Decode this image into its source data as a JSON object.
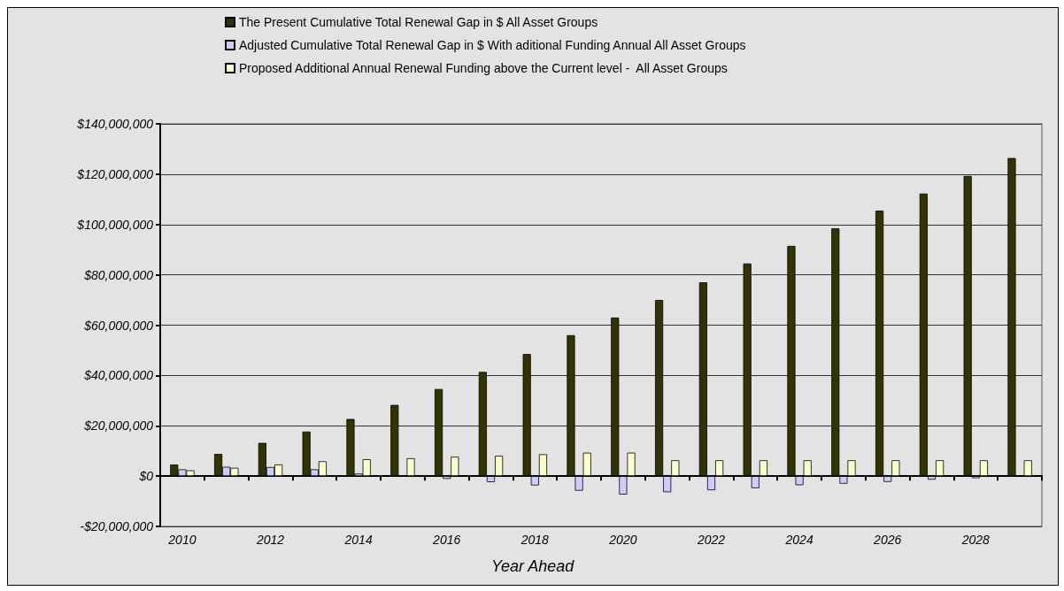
{
  "chart_data": {
    "type": "bar",
    "xlabel": "Year Ahead",
    "categories": [
      "2010",
      null,
      "2012",
      null,
      "2014",
      null,
      "2016",
      null,
      "2018",
      null,
      "2020",
      null,
      "2022",
      null,
      "2024",
      null,
      "2026",
      null,
      "2028",
      null
    ],
    "series": [
      {
        "name": "The Present Cumulative Total Renewal Gap in $ All Asset Groups",
        "color": "#333300",
        "values": [
          4600000,
          8800000,
          13200000,
          17700000,
          22700000,
          28300000,
          34600000,
          41400000,
          48500000,
          56000000,
          63000000,
          70000000,
          77000000,
          84500000,
          91500000,
          98500000,
          105500000,
          112300000,
          119300000,
          126400000
        ]
      },
      {
        "name": "Adjusted Cumulative Total Renewal Gap in $ With aditional Funding Annual All Asset Groups",
        "color": "#ccccff",
        "values": [
          2700000,
          3700000,
          3600000,
          2700000,
          1000000,
          null,
          -1100000,
          -2400000,
          -3700000,
          -5800000,
          -7300000,
          -6400000,
          -5600000,
          -4800000,
          -3600000,
          -3000000,
          -2300000,
          -1400000,
          -800000,
          null
        ]
      },
      {
        "name": "Proposed Additional Annual Renewal Funding above the Current level -  All Asset Groups",
        "color": "#ffffcc",
        "values": [
          2300000,
          3300000,
          4600000,
          5900000,
          6700000,
          7100000,
          7700000,
          8100000,
          8700000,
          9300000,
          9300000,
          6300000,
          6300000,
          6300000,
          6300000,
          6300000,
          6300000,
          6300000,
          6300000,
          6300000
        ]
      }
    ],
    "ylim": [
      -20000000,
      140000000
    ],
    "yticks": [
      {
        "value": -20000000,
        "label": "-$20,000,000"
      },
      {
        "value": 0,
        "label": "$0"
      },
      {
        "value": 20000000,
        "label": "$20,000,000"
      },
      {
        "value": 40000000,
        "label": "$40,000,000"
      },
      {
        "value": 60000000,
        "label": "$60,000,000"
      },
      {
        "value": 80000000,
        "label": "$80,000,000"
      },
      {
        "value": 100000000,
        "label": "$100,000,000"
      },
      {
        "value": 120000000,
        "label": "$120,000,000"
      },
      {
        "value": 140000000,
        "label": "$140,000,000"
      }
    ],
    "grid": "y",
    "legend": "top"
  }
}
